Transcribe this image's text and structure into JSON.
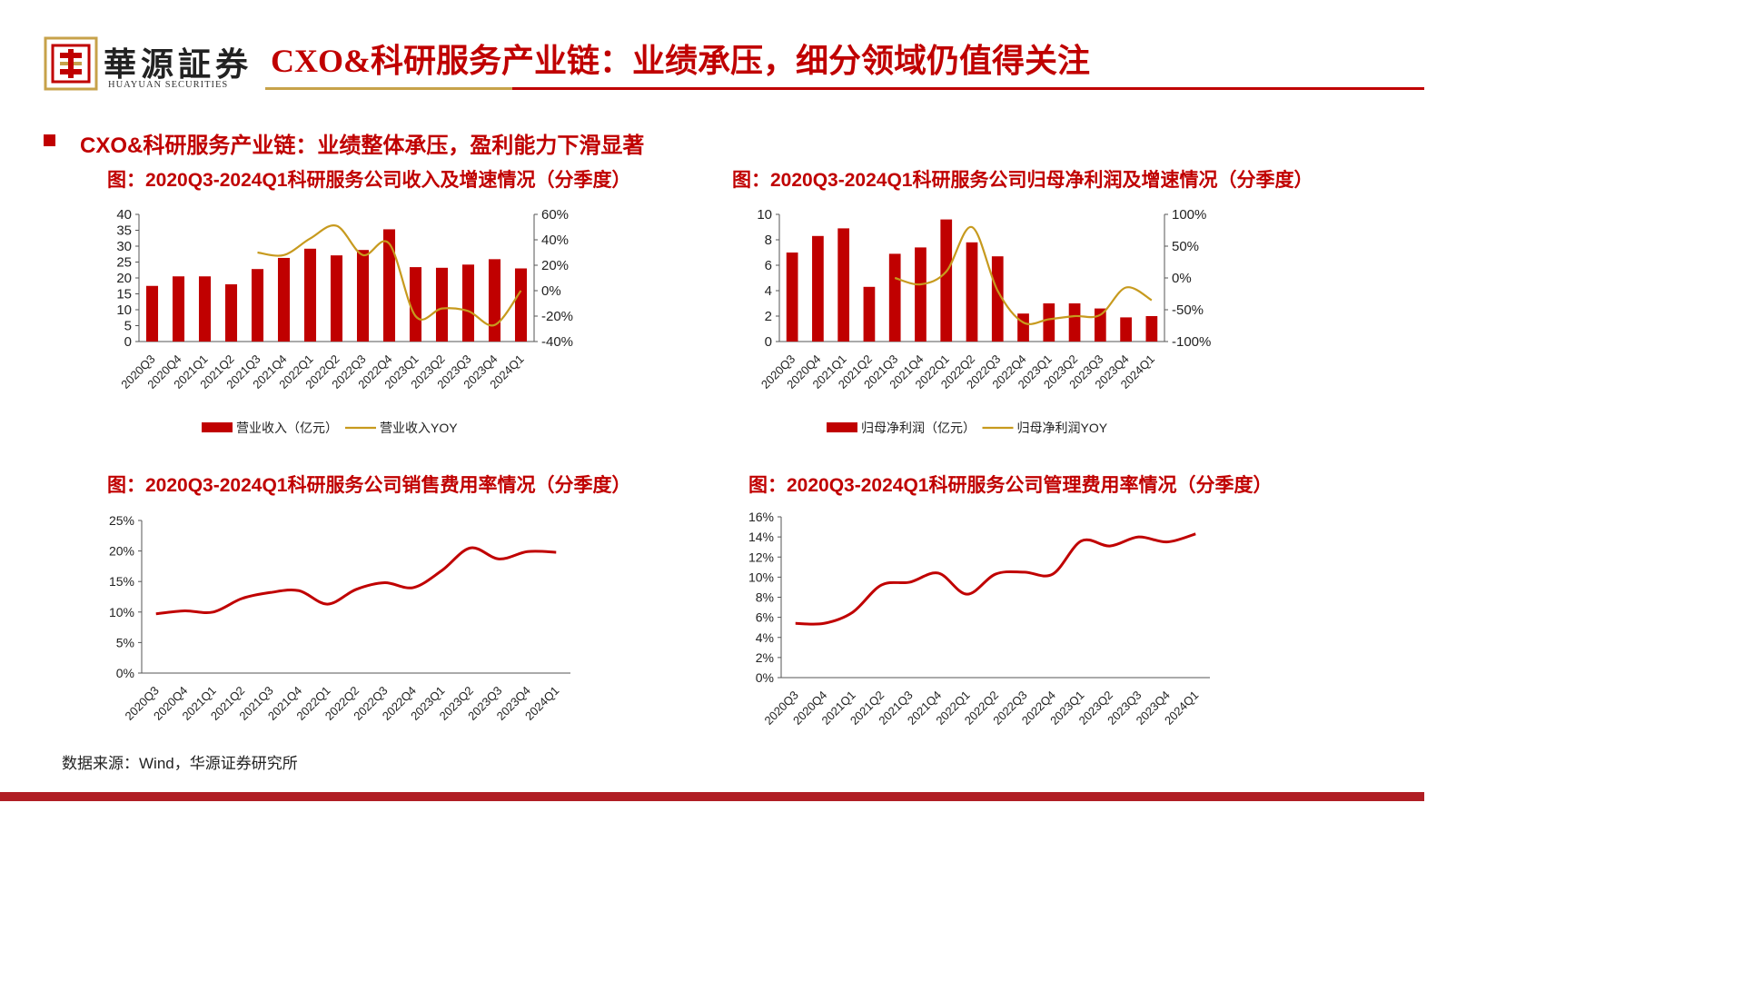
{
  "header": {
    "logo_cn": "華源証券",
    "logo_en": "HUAYUAN SECURITIES",
    "title": "CXO&科研服务产业链：业绩承压，细分领域仍值得关注"
  },
  "section": {
    "title": "CXO&科研服务产业链：业绩整体承压，盈利能力下滑显著"
  },
  "source": "数据来源：Wind，华源证券研究所",
  "colors": {
    "brand_red": "#c00000",
    "bar": "#c00000",
    "yoy_line": "#c79a1e",
    "gold_rule": "#c7a24a"
  },
  "chart_data": [
    {
      "id": "revenue",
      "type": "bar",
      "title": "图：2020Q3-2024Q1科研服务公司收入及增速情况（分季度）",
      "categories": [
        "2020Q3",
        "2020Q4",
        "2021Q1",
        "2021Q2",
        "2021Q3",
        "2021Q4",
        "2022Q1",
        "2022Q2",
        "2022Q3",
        "2022Q4",
        "2023Q1",
        "2023Q2",
        "2023Q3",
        "2023Q4",
        "2024Q1"
      ],
      "series": [
        {
          "name": "营业收入（亿元）",
          "kind": "bar",
          "axis": "left",
          "values": [
            17.5,
            20.5,
            20.5,
            18.0,
            22.8,
            26.3,
            29.2,
            27.1,
            28.8,
            35.3,
            23.4,
            23.2,
            24.2,
            25.9,
            23.0
          ]
        },
        {
          "name": "营业收入YOY",
          "kind": "line",
          "axis": "right",
          "values": [
            null,
            null,
            null,
            null,
            30,
            28,
            41,
            51,
            28,
            37,
            -20,
            -14,
            -16,
            -27,
            0
          ]
        }
      ],
      "ylim": [
        0,
        40
      ],
      "yticks": [
        0,
        5,
        10,
        15,
        20,
        25,
        30,
        35,
        40
      ],
      "y2lim": [
        -40,
        60
      ],
      "y2ticks": [
        "-40%",
        "-20%",
        "0%",
        "20%",
        "40%",
        "60%"
      ],
      "legend": "bottom"
    },
    {
      "id": "netprofit",
      "type": "bar",
      "title": "图：2020Q3-2024Q1科研服务公司归母净利润及增速情况（分季度）",
      "categories": [
        "2020Q3",
        "2020Q4",
        "2021Q1",
        "2021Q2",
        "2021Q3",
        "2021Q4",
        "2022Q1",
        "2022Q2",
        "2022Q3",
        "2022Q4",
        "2023Q1",
        "2023Q2",
        "2023Q3",
        "2023Q4",
        "2024Q1"
      ],
      "series": [
        {
          "name": "归母净利润（亿元）",
          "kind": "bar",
          "axis": "left",
          "values": [
            7.0,
            8.3,
            8.9,
            4.3,
            6.9,
            7.4,
            9.6,
            7.8,
            6.7,
            2.2,
            3.0,
            3.0,
            2.6,
            1.9,
            2.0
          ]
        },
        {
          "name": "归母净利润YOY",
          "kind": "line",
          "axis": "right",
          "values": [
            null,
            null,
            null,
            null,
            0,
            -10,
            10,
            80,
            -20,
            -70,
            -65,
            -60,
            -58,
            -15,
            -35
          ]
        }
      ],
      "ylim": [
        0,
        10
      ],
      "yticks": [
        0,
        2,
        4,
        6,
        8,
        10
      ],
      "y2lim": [
        -100,
        100
      ],
      "y2ticks": [
        "-100%",
        "-50%",
        "0%",
        "50%",
        "100%"
      ],
      "legend": "bottom"
    },
    {
      "id": "sales",
      "type": "line",
      "title": "图：2020Q3-2024Q1科研服务公司销售费用率情况（分季度）",
      "categories": [
        "2020Q3",
        "2020Q4",
        "2021Q1",
        "2021Q2",
        "2021Q3",
        "2021Q4",
        "2022Q1",
        "2022Q2",
        "2022Q3",
        "2022Q4",
        "2023Q1",
        "2023Q2",
        "2023Q3",
        "2023Q4",
        "2024Q1"
      ],
      "series": [
        {
          "values": [
            9.7,
            10.2,
            10.0,
            12.2,
            13.2,
            13.5,
            11.3,
            13.7,
            14.8,
            14.0,
            16.8,
            20.5,
            18.7,
            19.9,
            19.8
          ]
        }
      ],
      "ylim": [
        0,
        25
      ],
      "yticks": [
        "0%",
        "5%",
        "10%",
        "15%",
        "20%",
        "25%"
      ]
    },
    {
      "id": "admin",
      "type": "line",
      "title": "图：2020Q3-2024Q1科研服务公司管理费用率情况（分季度）",
      "categories": [
        "2020Q3",
        "2020Q4",
        "2021Q1",
        "2021Q2",
        "2021Q3",
        "2021Q4",
        "2022Q1",
        "2022Q2",
        "2022Q3",
        "2022Q4",
        "2023Q1",
        "2023Q2",
        "2023Q3",
        "2023Q4",
        "2024Q1"
      ],
      "series": [
        {
          "values": [
            5.4,
            5.4,
            6.5,
            9.2,
            9.5,
            10.4,
            8.3,
            10.3,
            10.5,
            10.3,
            13.6,
            13.1,
            14.0,
            13.5,
            14.3
          ]
        }
      ],
      "ylim": [
        0,
        16
      ],
      "yticks": [
        "0%",
        "2%",
        "4%",
        "6%",
        "8%",
        "10%",
        "12%",
        "14%",
        "16%"
      ]
    }
  ]
}
